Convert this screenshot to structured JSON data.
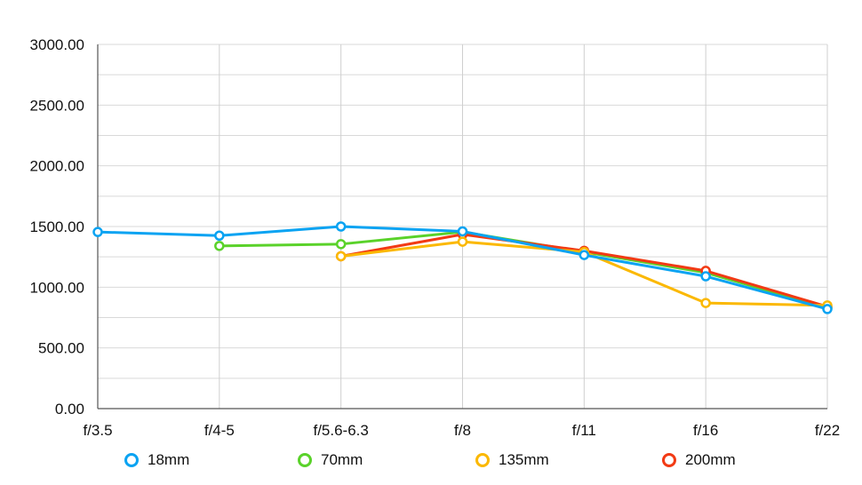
{
  "chart_data": {
    "type": "line",
    "title": "",
    "xlabel": "",
    "ylabel": "",
    "categories": [
      "f/3.5",
      "f/4-5",
      "f/5.6-6.3",
      "f/8",
      "f/11",
      "f/16",
      "f/22"
    ],
    "ylim": [
      0,
      3000
    ],
    "yticks": [
      "0.00",
      "500.00",
      "1000.00",
      "1500.00",
      "2000.00",
      "2500.00",
      "3000.00"
    ],
    "grid": true,
    "legend": "bottom",
    "series": [
      {
        "name": "70mm",
        "color": "#5ad22a",
        "values": [
          null,
          1340,
          1355,
          1455,
          1290,
          1120,
          830
        ]
      },
      {
        "name": "200mm",
        "color": "#f23a14",
        "values": [
          null,
          null,
          1255,
          1435,
          1300,
          1135,
          840
        ]
      },
      {
        "name": "135mm",
        "color": "#fbb800",
        "values": [
          null,
          null,
          1255,
          1375,
          1290,
          870,
          850
        ]
      },
      {
        "name": "18mm",
        "color": "#0aa3f2",
        "values": [
          1455,
          1425,
          1500,
          1460,
          1265,
          1090,
          820
        ]
      }
    ],
    "legend_order": [
      "18mm",
      "70mm",
      "135mm",
      "200mm"
    ]
  }
}
